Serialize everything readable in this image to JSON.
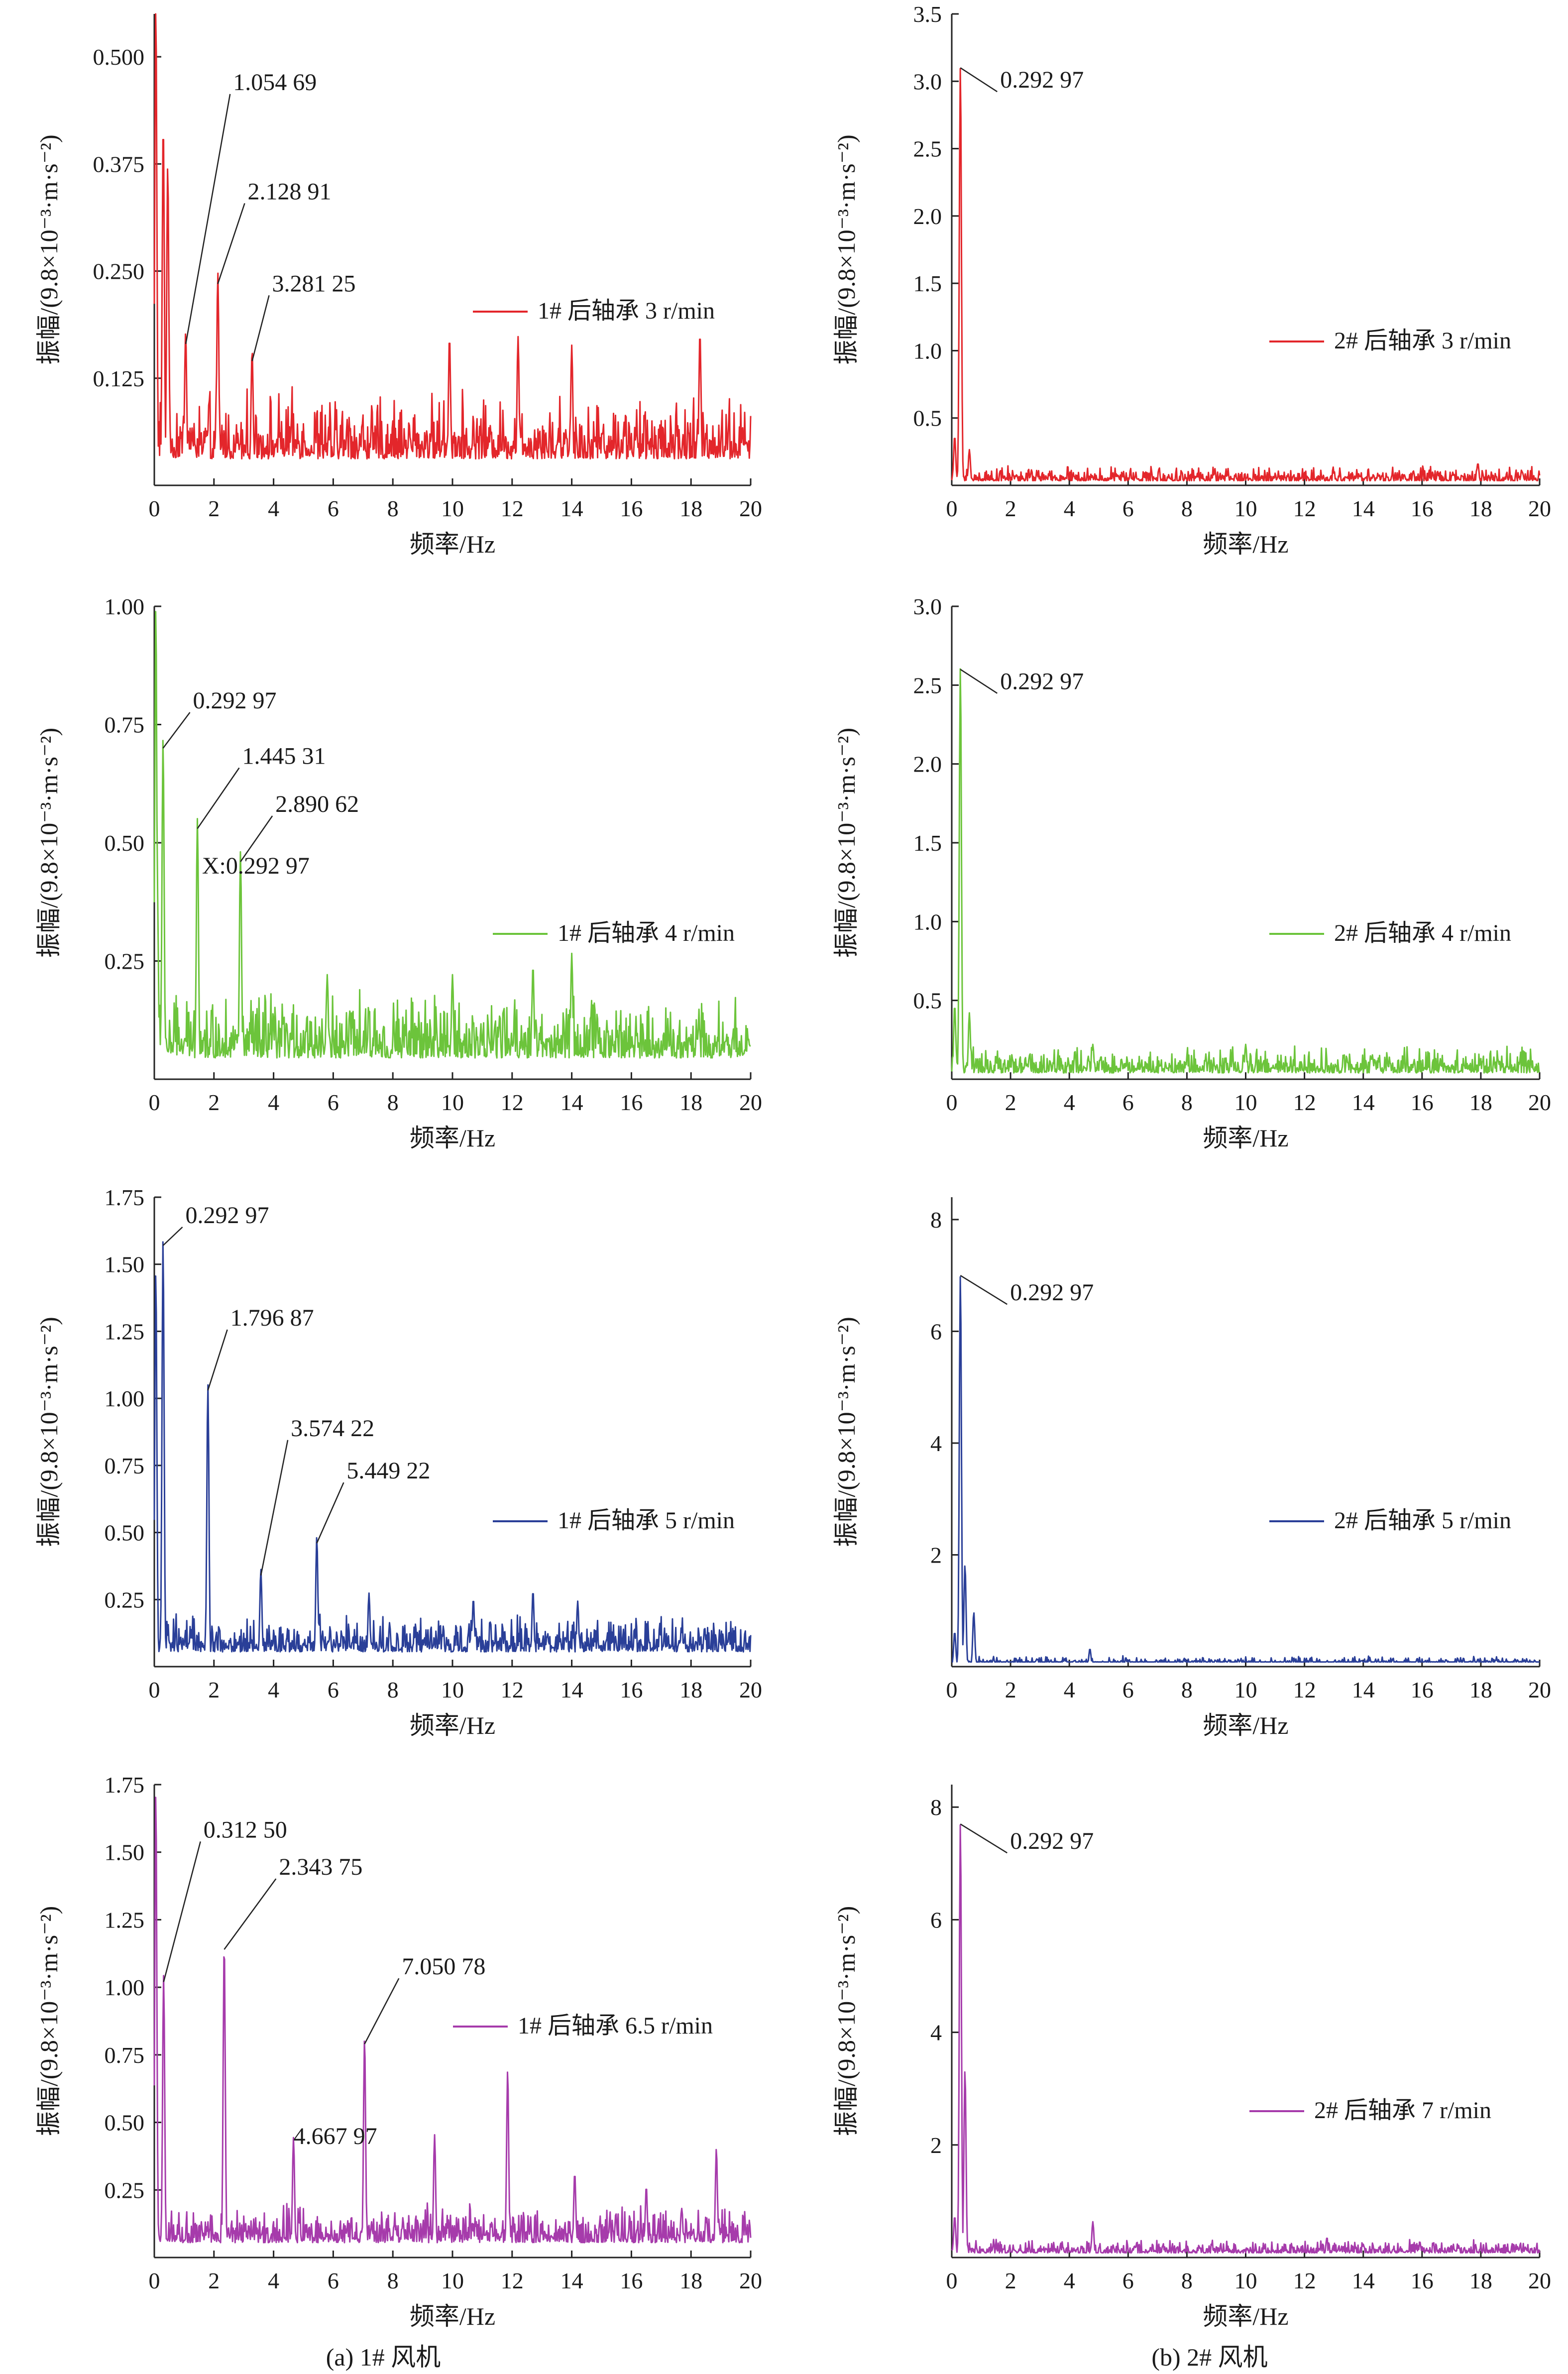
{
  "figure": {
    "captions": [
      "(a) 1# 风机",
      "(b) 2# 风机"
    ]
  },
  "chart_data": [
    {
      "id": "a1",
      "type": "line",
      "color": "#e3262b",
      "xlabel": "频率/Hz",
      "ylabel": "振幅/(9.8×10⁻³·m·s⁻²)",
      "xlim": [
        0,
        20
      ],
      "ylim": [
        0,
        0.55
      ],
      "xticks": [
        0,
        2,
        4,
        6,
        8,
        10,
        12,
        14,
        16,
        18,
        20
      ],
      "yticks": [
        0.125,
        0.25,
        0.375,
        0.5
      ],
      "ytick_labels": [
        "0.125",
        "0.250",
        "0.375",
        "0.500"
      ],
      "legend": "1# 后轴承 3 r/min",
      "series": [
        {
          "name": "1# 后轴承 3 r/min",
          "base": 0.045,
          "noise": 0.028,
          "peaks": [
            [
              0.05,
              0.55
            ],
            [
              0.3,
              0.41
            ],
            [
              0.45,
              0.36
            ],
            [
              1.05,
              0.165
            ],
            [
              2.13,
              0.235
            ],
            [
              3.28,
              0.145
            ],
            [
              9.9,
              0.16
            ],
            [
              12.2,
              0.16
            ],
            [
              14.0,
              0.15
            ],
            [
              18.3,
              0.165
            ]
          ]
        }
      ],
      "annotations": [
        {
          "text": "1.054 69",
          "x": 1.055,
          "y": 0.165
        },
        {
          "text": "2.128 91",
          "x": 2.129,
          "y": 0.235
        },
        {
          "text": "3.281 25",
          "x": 3.281,
          "y": 0.145
        }
      ]
    },
    {
      "id": "b1",
      "type": "line",
      "color": "#e3262b",
      "xlabel": "频率/Hz",
      "ylabel": "振幅/(9.8×10⁻³·m·s⁻²)",
      "xlim": [
        0,
        20
      ],
      "ylim": [
        0,
        3.5
      ],
      "xticks": [
        0,
        2,
        4,
        6,
        8,
        10,
        12,
        14,
        16,
        18,
        20
      ],
      "yticks": [
        0.5,
        1.0,
        1.5,
        2.0,
        2.5,
        3.0,
        3.5
      ],
      "ytick_labels": [
        "0.5",
        "1.0",
        "1.5",
        "2.0",
        "2.5",
        "3.0",
        "3.5"
      ],
      "legend": "2# 后轴承 3 r/min",
      "series": [
        {
          "name": "2# 后轴承 3 r/min",
          "base": 0.05,
          "noise": 0.04,
          "peaks": [
            [
              0.1,
              0.35
            ],
            [
              0.293,
              3.1
            ],
            [
              0.6,
              0.25
            ],
            [
              17.9,
              0.15
            ]
          ]
        }
      ],
      "annotations": [
        {
          "text": "0.292 97",
          "x": 0.293,
          "y": 3.1
        }
      ]
    },
    {
      "id": "a2",
      "type": "line",
      "color": "#6cc43b",
      "xlabel": "频率/Hz",
      "ylabel": "振幅/(9.8×10⁻³·m·s⁻²)",
      "xlim": [
        0,
        20
      ],
      "ylim": [
        0,
        1.0
      ],
      "xticks": [
        0,
        2,
        4,
        6,
        8,
        10,
        12,
        14,
        16,
        18,
        20
      ],
      "yticks": [
        0.25,
        0.5,
        0.75,
        1.0
      ],
      "ytick_labels": [
        "0.25",
        "0.50",
        "0.75",
        "1.00"
      ],
      "legend": "1# 后轴承 4 r/min",
      "series": [
        {
          "name": "1# 后轴承 4 r/min",
          "base": 0.07,
          "noise": 0.05,
          "peaks": [
            [
              0.05,
              0.98
            ],
            [
              0.293,
              0.7
            ],
            [
              0.1,
              0.39
            ],
            [
              1.445,
              0.53
            ],
            [
              2.89,
              0.46
            ],
            [
              5.8,
              0.2
            ],
            [
              10.0,
              0.2
            ],
            [
              12.7,
              0.22
            ],
            [
              14.0,
              0.245
            ]
          ]
        }
      ],
      "annotations": [
        {
          "text": "0.292 97",
          "x": 0.293,
          "y": 0.7
        },
        {
          "text": "1.445 31",
          "x": 1.445,
          "y": 0.53
        },
        {
          "text": "2.890 62",
          "x": 2.891,
          "y": 0.46
        },
        {
          "text": "X:0.292 97",
          "x": 1.6,
          "y": 0.435,
          "plain": true
        }
      ]
    },
    {
      "id": "b2",
      "type": "line",
      "color": "#6cc43b",
      "xlabel": "频率/Hz",
      "ylabel": "振幅/(9.8×10⁻³·m·s⁻²)",
      "xlim": [
        0,
        20
      ],
      "ylim": [
        0,
        3.0
      ],
      "xticks": [
        0,
        2,
        4,
        6,
        8,
        10,
        12,
        14,
        16,
        18,
        20
      ],
      "yticks": [
        0.5,
        1.0,
        1.5,
        2.0,
        2.5,
        3.0
      ],
      "ytick_labels": [
        "0.5",
        "1.0",
        "1.5",
        "2.0",
        "2.5",
        "3.0"
      ],
      "legend": "2# 后轴承 4 r/min",
      "series": [
        {
          "name": "2# 后轴承 4 r/min",
          "base": 0.07,
          "noise": 0.06,
          "peaks": [
            [
              0.1,
              0.45
            ],
            [
              0.293,
              2.6
            ],
            [
              0.6,
              0.4
            ],
            [
              4.8,
              0.2
            ],
            [
              10.0,
              0.2
            ]
          ]
        }
      ],
      "annotations": [
        {
          "text": "0.292 97",
          "x": 0.293,
          "y": 2.6
        }
      ]
    },
    {
      "id": "a3",
      "type": "line",
      "color": "#2a3f98",
      "xlabel": "频率/Hz",
      "ylabel": "振幅/(9.8×10⁻³·m·s⁻²)",
      "xlim": [
        0,
        20
      ],
      "ylim": [
        0,
        1.75
      ],
      "xticks": [
        0,
        2,
        4,
        6,
        8,
        10,
        12,
        14,
        16,
        18,
        20
      ],
      "yticks": [
        0.25,
        0.5,
        0.75,
        1.0,
        1.25,
        1.5,
        1.75
      ],
      "ytick_labels": [
        "0.25",
        "0.50",
        "0.75",
        "1.00",
        "1.25",
        "1.50",
        "1.75"
      ],
      "legend": "1# 后轴承 5 r/min",
      "series": [
        {
          "name": "1# 后轴承 5 r/min",
          "base": 0.08,
          "noise": 0.05,
          "peaks": [
            [
              0.05,
              1.45
            ],
            [
              0.293,
              1.57
            ],
            [
              1.797,
              1.03
            ],
            [
              3.574,
              0.34
            ],
            [
              5.449,
              0.46
            ],
            [
              7.2,
              0.25
            ],
            [
              10.7,
              0.23
            ],
            [
              12.7,
              0.26
            ],
            [
              14.2,
              0.22
            ]
          ]
        }
      ],
      "annotations": [
        {
          "text": "0.292 97",
          "x": 0.293,
          "y": 1.57
        },
        {
          "text": "1.796 87",
          "x": 1.797,
          "y": 1.03
        },
        {
          "text": "3.574 22",
          "x": 3.574,
          "y": 0.34
        },
        {
          "text": "5.449 22",
          "x": 5.449,
          "y": 0.46
        }
      ]
    },
    {
      "id": "b3",
      "type": "line",
      "color": "#2a3f98",
      "xlabel": "频率/Hz",
      "ylabel": "振幅/(9.8×10⁻³·m·s⁻²)",
      "xlim": [
        0,
        20
      ],
      "ylim": [
        0,
        8.4
      ],
      "xticks": [
        0,
        2,
        4,
        6,
        8,
        10,
        12,
        14,
        16,
        18,
        20
      ],
      "yticks": [
        2,
        4,
        6,
        8
      ],
      "ytick_labels": [
        "2",
        "4",
        "6",
        "8"
      ],
      "legend": "2# 后轴承 5 r/min",
      "series": [
        {
          "name": "2# 后轴承 5 r/min",
          "base": 0.07,
          "noise": 0.05,
          "peaks": [
            [
              0.1,
              0.6
            ],
            [
              0.293,
              7.0
            ],
            [
              0.45,
              1.8
            ],
            [
              0.75,
              0.95
            ],
            [
              4.7,
              0.3
            ]
          ]
        }
      ],
      "annotations": [
        {
          "text": "0.292 97",
          "x": 0.293,
          "y": 7.0
        }
      ]
    },
    {
      "id": "a4",
      "type": "line",
      "color": "#a63bab",
      "xlabel": "频率/Hz",
      "ylabel": "振幅/(9.8×10⁻³·m·s⁻²)",
      "xlim": [
        0,
        20
      ],
      "ylim": [
        0,
        1.75
      ],
      "xticks": [
        0,
        2,
        4,
        6,
        8,
        10,
        12,
        14,
        16,
        18,
        20
      ],
      "yticks": [
        0.25,
        0.5,
        0.75,
        1.0,
        1.25,
        1.5,
        1.75
      ],
      "ytick_labels": [
        "0.25",
        "0.50",
        "0.75",
        "1.00",
        "1.25",
        "1.50",
        "1.75"
      ],
      "legend": "1# 后轴承 6.5 r/min",
      "series": [
        {
          "name": "1# 后轴承 6.5 r/min",
          "base": 0.08,
          "noise": 0.05,
          "peaks": [
            [
              0.05,
              1.7
            ],
            [
              0.3125,
              1.02
            ],
            [
              2.344,
              1.14
            ],
            [
              4.668,
              0.42
            ],
            [
              7.051,
              0.79
            ],
            [
              9.4,
              0.43
            ],
            [
              11.85,
              0.67
            ],
            [
              14.1,
              0.29
            ],
            [
              16.5,
              0.24
            ],
            [
              18.85,
              0.38
            ]
          ]
        }
      ],
      "annotations": [
        {
          "text": "0.312 50",
          "x": 0.3125,
          "y": 1.02
        },
        {
          "text": "2.343 75",
          "x": 2.344,
          "y": 1.14
        },
        {
          "text": "4.667 97",
          "x": 4.668,
          "y": 0.42,
          "plain": true
        },
        {
          "text": "7.050 78",
          "x": 7.051,
          "y": 0.79
        }
      ]
    },
    {
      "id": "b4",
      "type": "line",
      "color": "#a63bab",
      "xlabel": "频率/Hz",
      "ylabel": "振幅/(9.8×10⁻³·m·s⁻²)",
      "xlim": [
        0,
        20
      ],
      "ylim": [
        0,
        8.4
      ],
      "xticks": [
        0,
        2,
        4,
        6,
        8,
        10,
        12,
        14,
        16,
        18,
        20
      ],
      "yticks": [
        2,
        4,
        6,
        8
      ],
      "ytick_labels": [
        "2",
        "4",
        "6",
        "8"
      ],
      "legend": "2# 后轴承 7 r/min",
      "series": [
        {
          "name": "2# 后轴承 7 r/min",
          "base": 0.12,
          "noise": 0.09,
          "peaks": [
            [
              0.1,
              0.7
            ],
            [
              0.293,
              7.7
            ],
            [
              0.45,
              3.3
            ],
            [
              4.8,
              0.6
            ],
            [
              14.0,
              0.2
            ]
          ]
        }
      ],
      "annotations": [
        {
          "text": "0.292 97",
          "x": 0.293,
          "y": 7.7
        }
      ]
    }
  ]
}
